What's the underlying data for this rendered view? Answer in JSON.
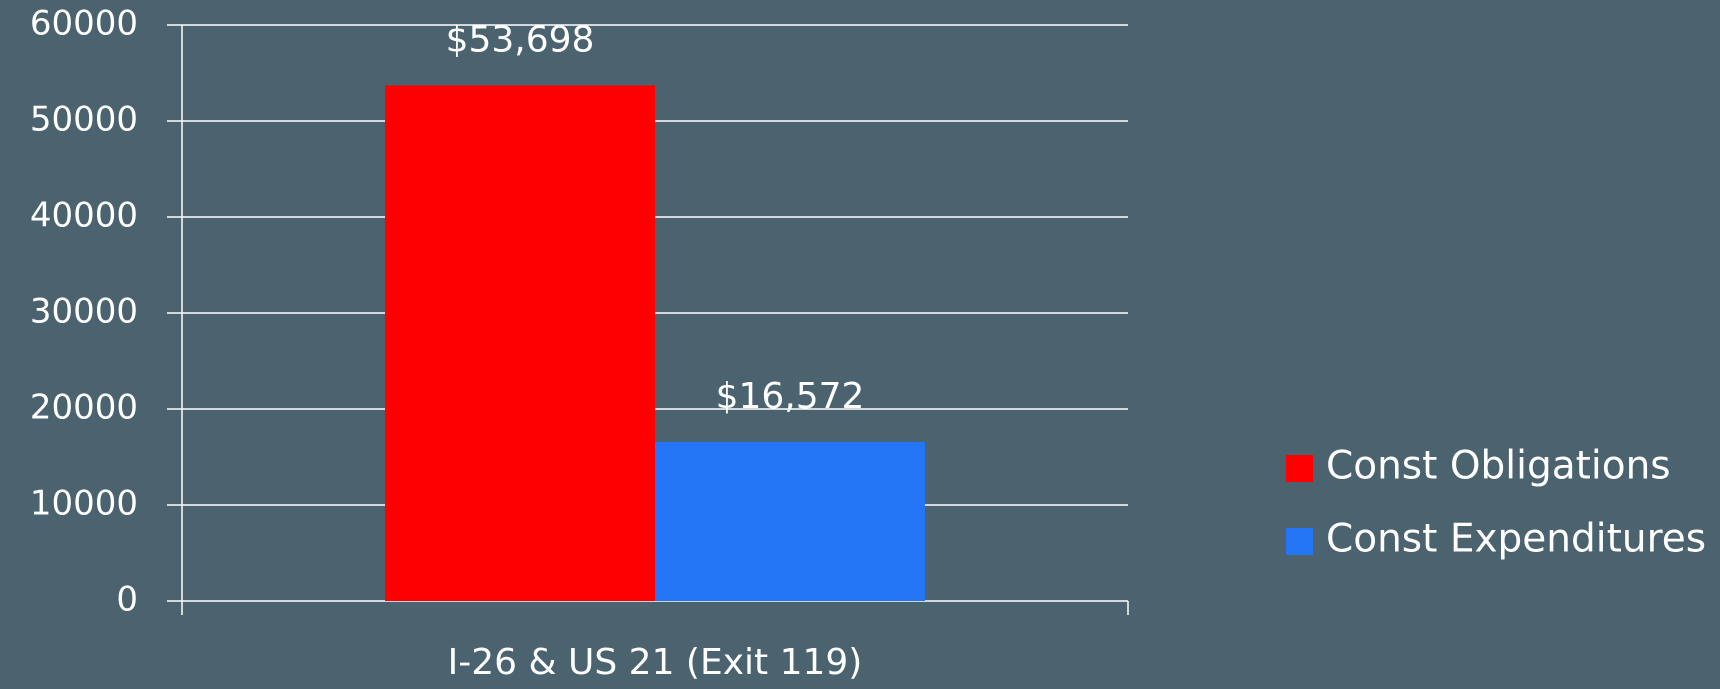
{
  "chart_data": {
    "type": "bar",
    "categories": [
      "I-26 & US 21 (Exit 119)"
    ],
    "series": [
      {
        "name": "Const Obligations",
        "color": "#ff0000",
        "values": [
          53698
        ],
        "value_labels": [
          "$53,698"
        ]
      },
      {
        "name": "Const Expenditures",
        "color": "#2576f5",
        "values": [
          16572
        ],
        "value_labels": [
          "$16,572"
        ]
      }
    ],
    "ylim": [
      0,
      60000
    ],
    "yticks": [
      0,
      10000,
      20000,
      30000,
      40000,
      50000,
      60000
    ],
    "grid": true,
    "legend": "right"
  }
}
